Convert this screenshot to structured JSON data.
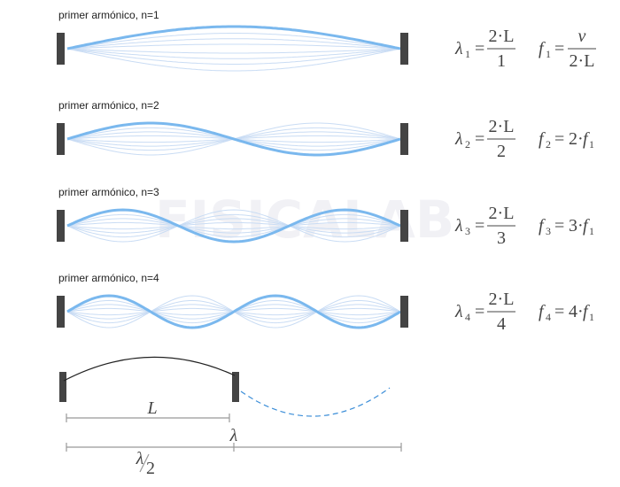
{
  "watermark": "FISICALAB",
  "rows": [
    {
      "label": "primer armónico, n=1",
      "lambda": {
        "symbol": "λ",
        "sub": "1",
        "eq": "=",
        "num": "2·L",
        "den": "1"
      },
      "freq": {
        "symbol": "f",
        "sub": "1",
        "eq": "=",
        "num": "v",
        "den": "2·L"
      }
    },
    {
      "label": "primer armónico, n=2",
      "lambda": {
        "symbol": "λ",
        "sub": "2",
        "eq": "=",
        "num": "2·L",
        "den": "2"
      },
      "freq": {
        "symbol": "f",
        "sub": "2",
        "eq": "=",
        "coef": "2·",
        "var": "f",
        "var_sub": "1"
      }
    },
    {
      "label": "primer armónico, n=3",
      "lambda": {
        "symbol": "λ",
        "sub": "3",
        "eq": "=",
        "num": "2·L",
        "den": "3"
      },
      "freq": {
        "symbol": "f",
        "sub": "3",
        "eq": "=",
        "coef": "3·",
        "var": "f",
        "var_sub": "1"
      }
    },
    {
      "label": "primer armónico, n=4",
      "lambda": {
        "symbol": "λ",
        "sub": "4",
        "eq": "=",
        "num": "2·L",
        "den": "4"
      },
      "freq": {
        "symbol": "f",
        "sub": "4",
        "eq": "=",
        "coef": "4·",
        "var": "f",
        "var_sub": "1"
      }
    }
  ],
  "bottom": {
    "L": "L",
    "lambda": "λ",
    "half_num": "λ",
    "half_den": "2"
  }
}
